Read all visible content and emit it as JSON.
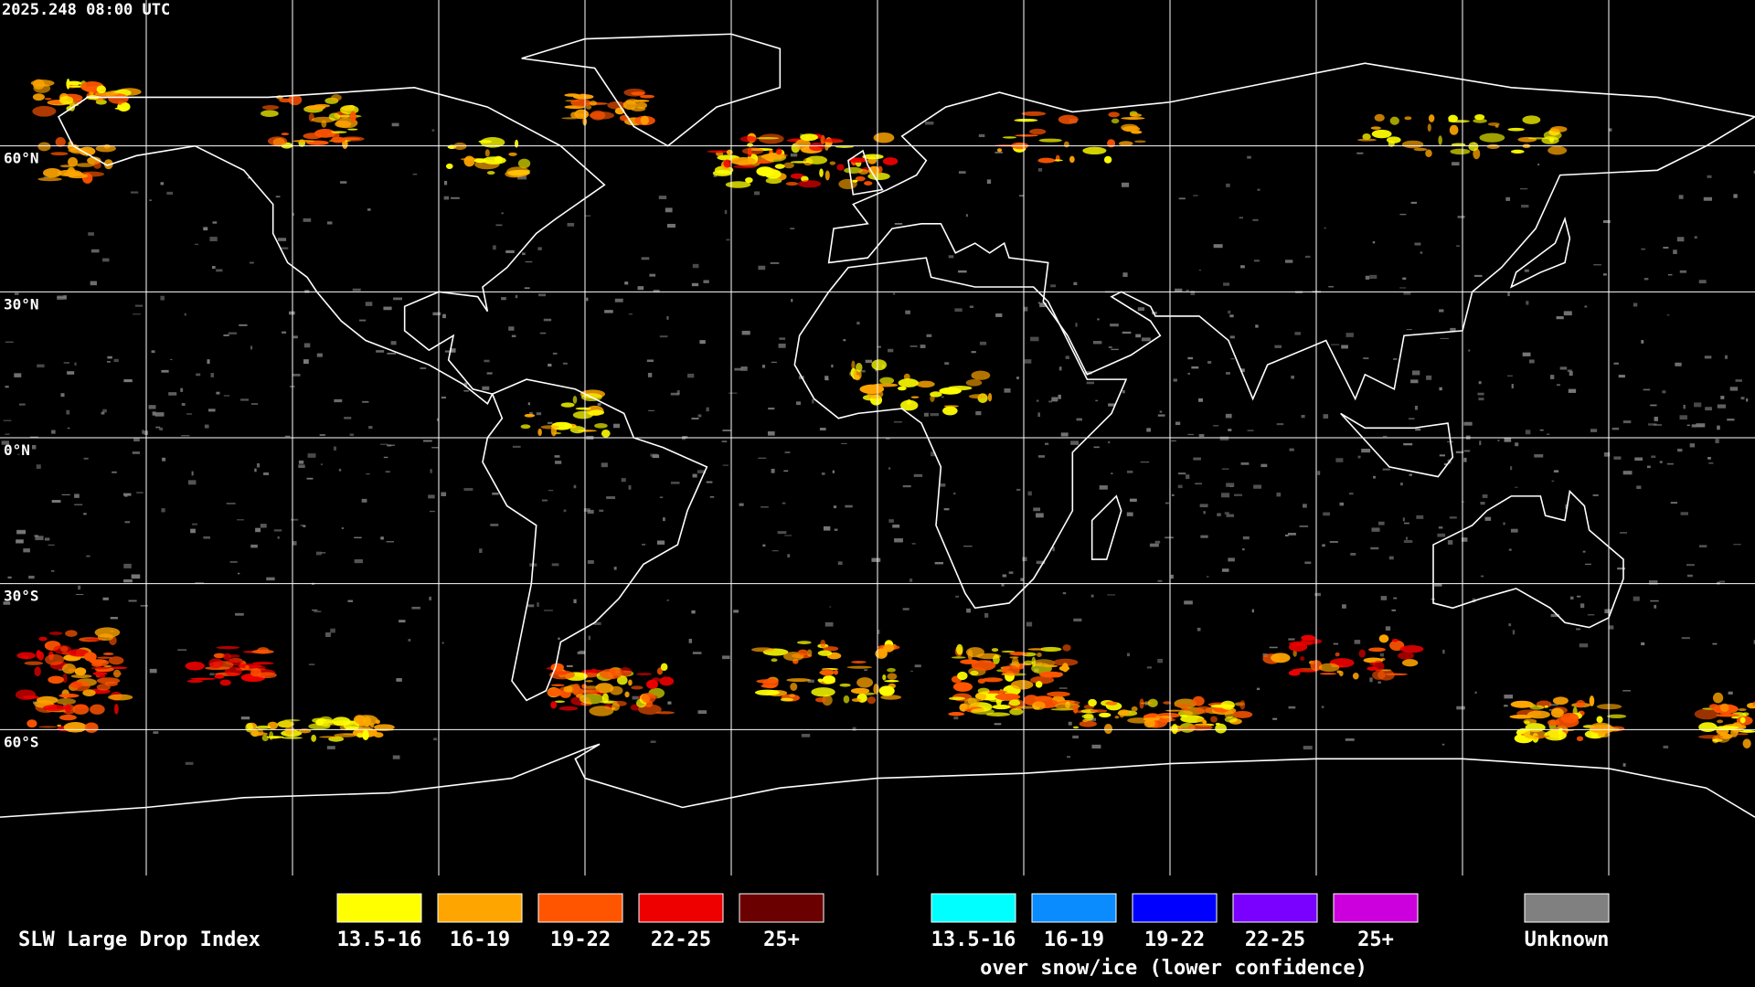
{
  "header": {
    "timestamp": "2025.248 08:00 UTC"
  },
  "map": {
    "latitude_labels": [
      "60°N",
      "30°N",
      "0°N",
      "30°S",
      "60°S"
    ]
  },
  "legend": {
    "title": "SLW Large Drop Index",
    "items": [
      {
        "label": "13.5-16",
        "color": "#ffff00"
      },
      {
        "label": "16-19",
        "color": "#ffa500"
      },
      {
        "label": "19-22",
        "color": "#ff5500"
      },
      {
        "label": "22-25",
        "color": "#ee0000"
      },
      {
        "label": "25+",
        "color": "#6b0000"
      }
    ],
    "snow_ice_items": [
      {
        "label": "13.5-16",
        "color": "#00ffff"
      },
      {
        "label": "16-19",
        "color": "#0a8cff"
      },
      {
        "label": "19-22",
        "color": "#0000ff"
      },
      {
        "label": "22-25",
        "color": "#7a00ff"
      },
      {
        "label": "25+",
        "color": "#cc00dd"
      }
    ],
    "snow_ice_caption": "over snow/ice (lower confidence)",
    "unknown": {
      "label": "Unknown",
      "color": "#808080"
    }
  }
}
